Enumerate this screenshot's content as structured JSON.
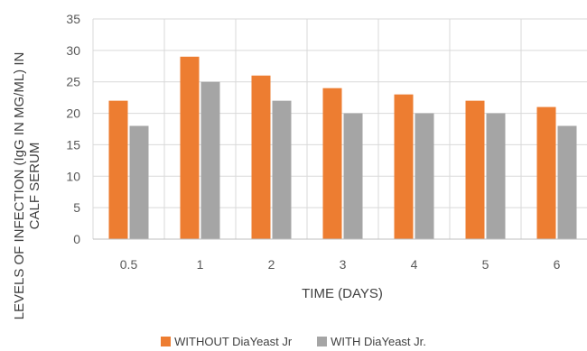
{
  "chart_data": {
    "type": "bar",
    "title": "",
    "xlabel": "TIME (DAYS)",
    "ylabel": "LEVELS OF INFECTION (IgG IN MG/ML) IN CALF SERUM",
    "ylabel_lines": [
      "LEVELS OF INFECTION (IgG IN MG/ML) IN",
      "CALF SERUM"
    ],
    "categories": [
      "0.5",
      "1",
      "2",
      "3",
      "4",
      "5",
      "6"
    ],
    "ylim": [
      0,
      35
    ],
    "yticks": [
      0,
      5,
      10,
      15,
      20,
      25,
      30,
      35
    ],
    "grid": true,
    "legend_position": "bottom",
    "series": [
      {
        "name": "WITHOUT DiaYeast Jr",
        "color": "#ed7d31",
        "values": [
          22,
          29,
          26,
          24,
          23,
          22,
          21
        ]
      },
      {
        "name": "WITH DiaYeast Jr.",
        "color": "#a5a5a5",
        "values": [
          18,
          25,
          22,
          20,
          20,
          20,
          18
        ]
      }
    ]
  }
}
